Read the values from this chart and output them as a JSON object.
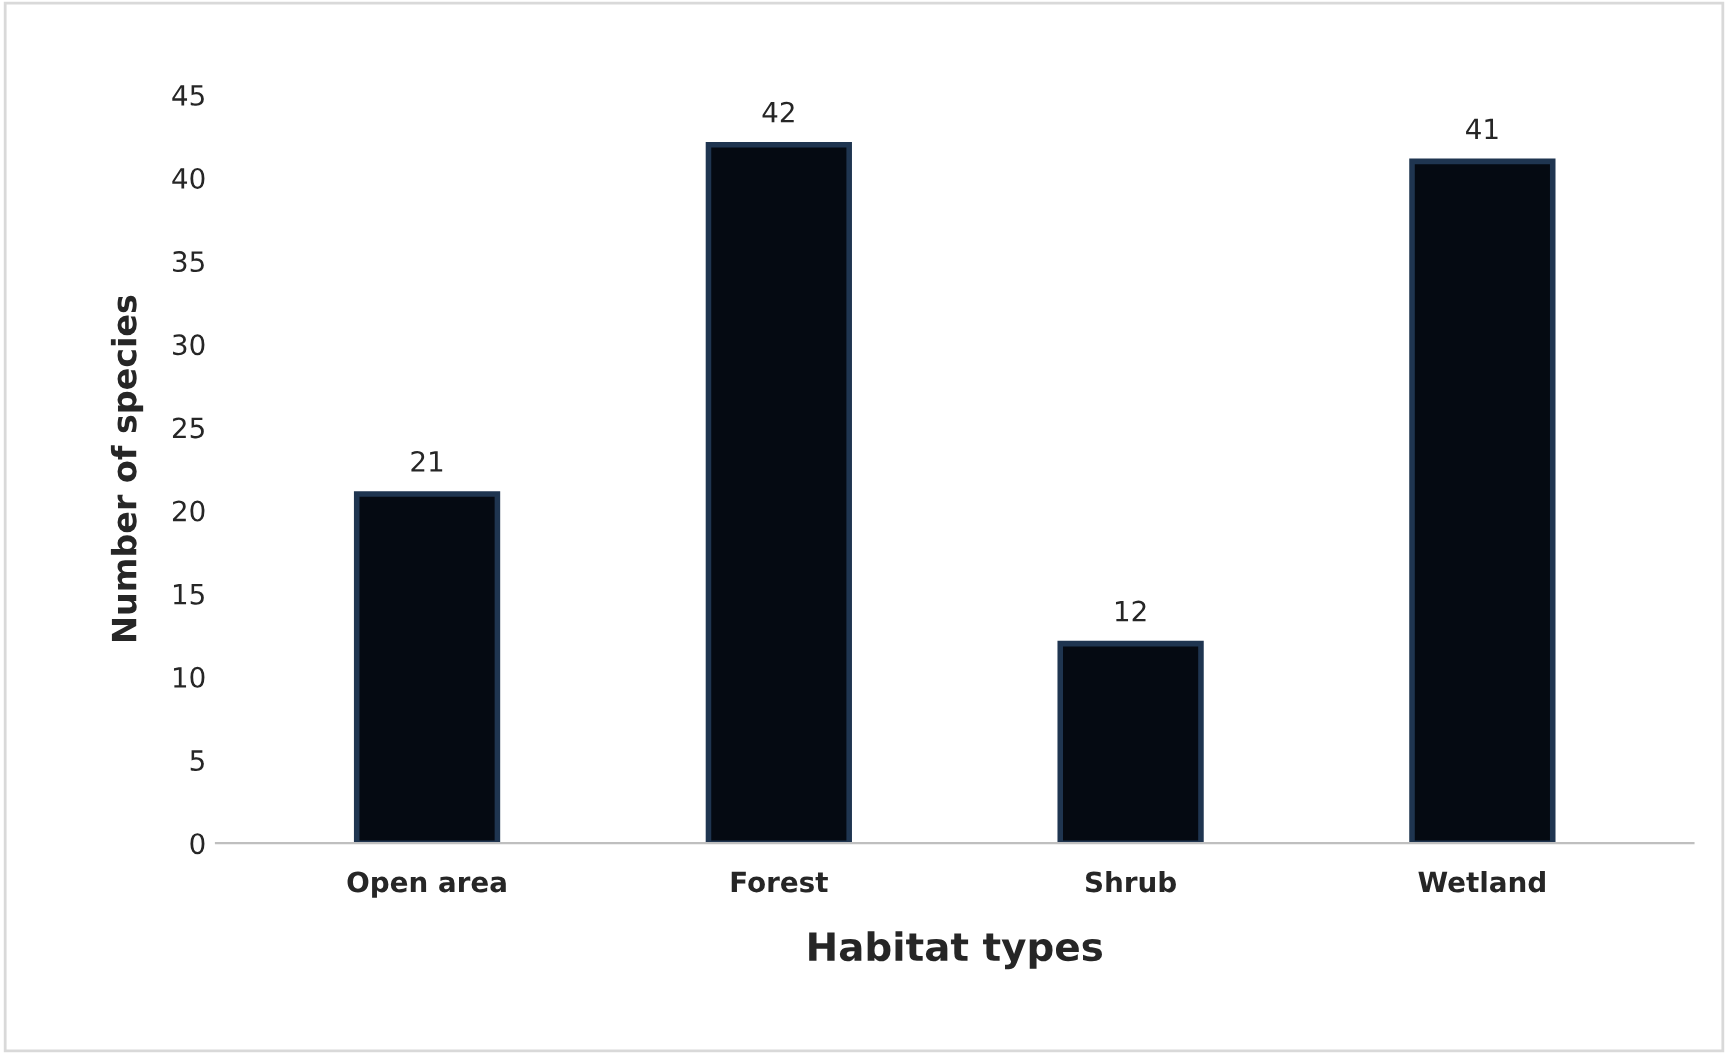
{
  "chart_data": {
    "type": "bar",
    "xlabel": "Habitat types",
    "ylabel": "Number of species",
    "categories": [
      "Open area",
      "Forest",
      "Shrub",
      "Wetland"
    ],
    "values": [
      21,
      42,
      12,
      41
    ],
    "color": "#050a12",
    "ylim": [
      0,
      45
    ],
    "yticks": [
      0,
      5,
      10,
      15,
      20,
      25,
      30,
      35,
      40,
      45
    ],
    "grid": false,
    "data_labels": true
  }
}
